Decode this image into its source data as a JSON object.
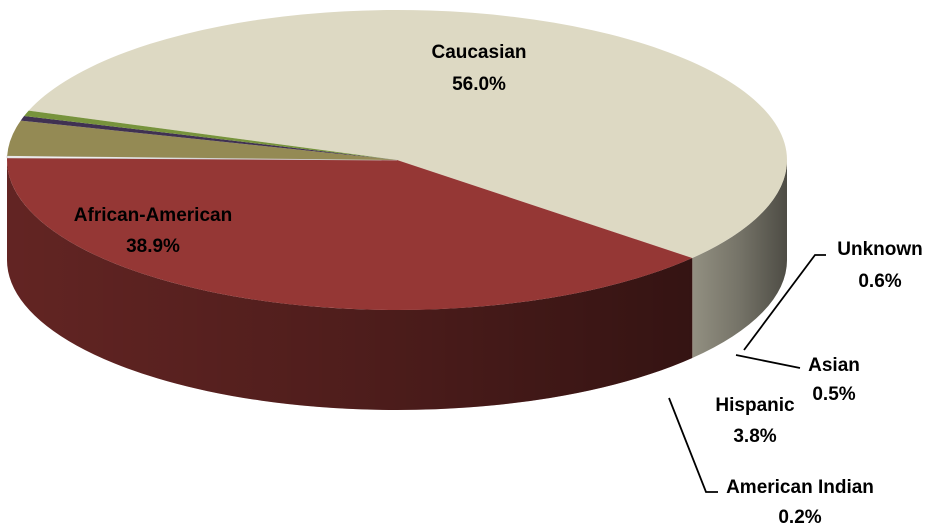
{
  "chart_data": {
    "type": "pie",
    "series": [
      {
        "categories": [
          "Caucasian",
          "African-American",
          "American Indian",
          "Hispanic",
          "Asian",
          "Unknown"
        ],
        "values": [
          56.0,
          38.9,
          0.2,
          3.8,
          0.5,
          0.6
        ],
        "value_labels": [
          "56.0%",
          "38.9%",
          "0.2%",
          "3.8%",
          "0.5%",
          "0.6%"
        ]
      }
    ],
    "colors": {
      "Caucasian": "#ddd9c3",
      "African-American": "#953735",
      "American Indian": "#ffffff",
      "Hispanic": "#948a54",
      "Asian": "#403152",
      "Unknown": "#77933c"
    },
    "style": "3d-tilted",
    "legend": "none",
    "labels": "data-labels-with-leader-lines"
  }
}
